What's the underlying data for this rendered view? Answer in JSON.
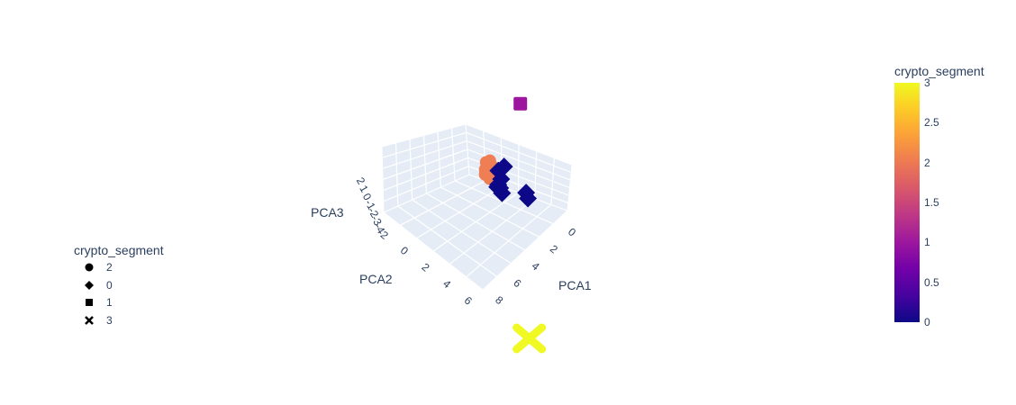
{
  "chart_data": {
    "type": "scatter3d",
    "axes": {
      "x": {
        "title": "PCA1",
        "ticks": [
          "0",
          "2",
          "4",
          "6",
          "8"
        ]
      },
      "y": {
        "title": "PCA2",
        "ticks": [
          "-2",
          "0",
          "2",
          "4",
          "6"
        ]
      },
      "z": {
        "title": "PCA3",
        "ticks": [
          "2",
          "1",
          "0",
          "-1",
          "-2",
          "-3",
          "-4"
        ]
      }
    },
    "legend": {
      "title": "crypto_segment",
      "placement": "left",
      "items": [
        {
          "label": "2",
          "symbol": "circle"
        },
        {
          "label": "0",
          "symbol": "diamond"
        },
        {
          "label": "1",
          "symbol": "square"
        },
        {
          "label": "3",
          "symbol": "x"
        }
      ]
    },
    "colorbar": {
      "title": "crypto_segment",
      "min": 0,
      "max": 3,
      "ticks": [
        "0",
        "0.5",
        "1",
        "1.5",
        "2",
        "2.5",
        "3"
      ],
      "colors": [
        "#0d0887",
        "#46039f",
        "#7201a8",
        "#9c179e",
        "#bd3786",
        "#d8576b",
        "#ed7953",
        "#fb9f3a",
        "#fdca26",
        "#f0f921"
      ]
    },
    "series": [
      {
        "name": "2",
        "symbol": "circle",
        "color": "#ef7e55",
        "points": [
          [
            -0.6,
            0.2,
            0.8
          ],
          [
            -0.4,
            -0.3,
            0.4
          ],
          [
            -0.5,
            0.4,
            0.5
          ],
          [
            -0.3,
            0.1,
            0.3
          ],
          [
            -0.2,
            -0.1,
            0.2
          ],
          [
            -0.5,
            -0.2,
            0.5
          ],
          [
            -0.4,
            0.5,
            0.3
          ],
          [
            -0.1,
            0.3,
            0.2
          ],
          [
            -0.3,
            -0.1,
            0.4
          ],
          [
            0.0,
            0.0,
            0.3
          ],
          [
            -0.2,
            0.2,
            1.2
          ],
          [
            0.1,
            0.5,
            0.4
          ],
          [
            -0.2,
            -0.2,
            0.4
          ]
        ]
      },
      {
        "name": "0",
        "symbol": "diamond",
        "color": "#0d0887",
        "points": [
          [
            -0.2,
            -1.3,
            0.1
          ],
          [
            -0.3,
            -0.8,
            0.0
          ],
          [
            0.1,
            -0.7,
            -0.2
          ],
          [
            0.3,
            -0.4,
            -0.5
          ],
          [
            0.2,
            -0.3,
            -0.3
          ],
          [
            0.4,
            -0.5,
            -0.8
          ],
          [
            0.2,
            -0.2,
            -0.4
          ],
          [
            2.2,
            -1.3,
            0.2
          ],
          [
            2.5,
            -1.2,
            0.1
          ]
        ]
      },
      {
        "name": "1",
        "symbol": "square",
        "color": "#9c179e",
        "points": [
          [
            -1.0,
            -3.8,
            2.4
          ]
        ]
      },
      {
        "name": "3",
        "symbol": "x",
        "color": "#f0f921",
        "points": [
          [
            8.0,
            4.0,
            -2.4
          ]
        ]
      }
    ]
  }
}
